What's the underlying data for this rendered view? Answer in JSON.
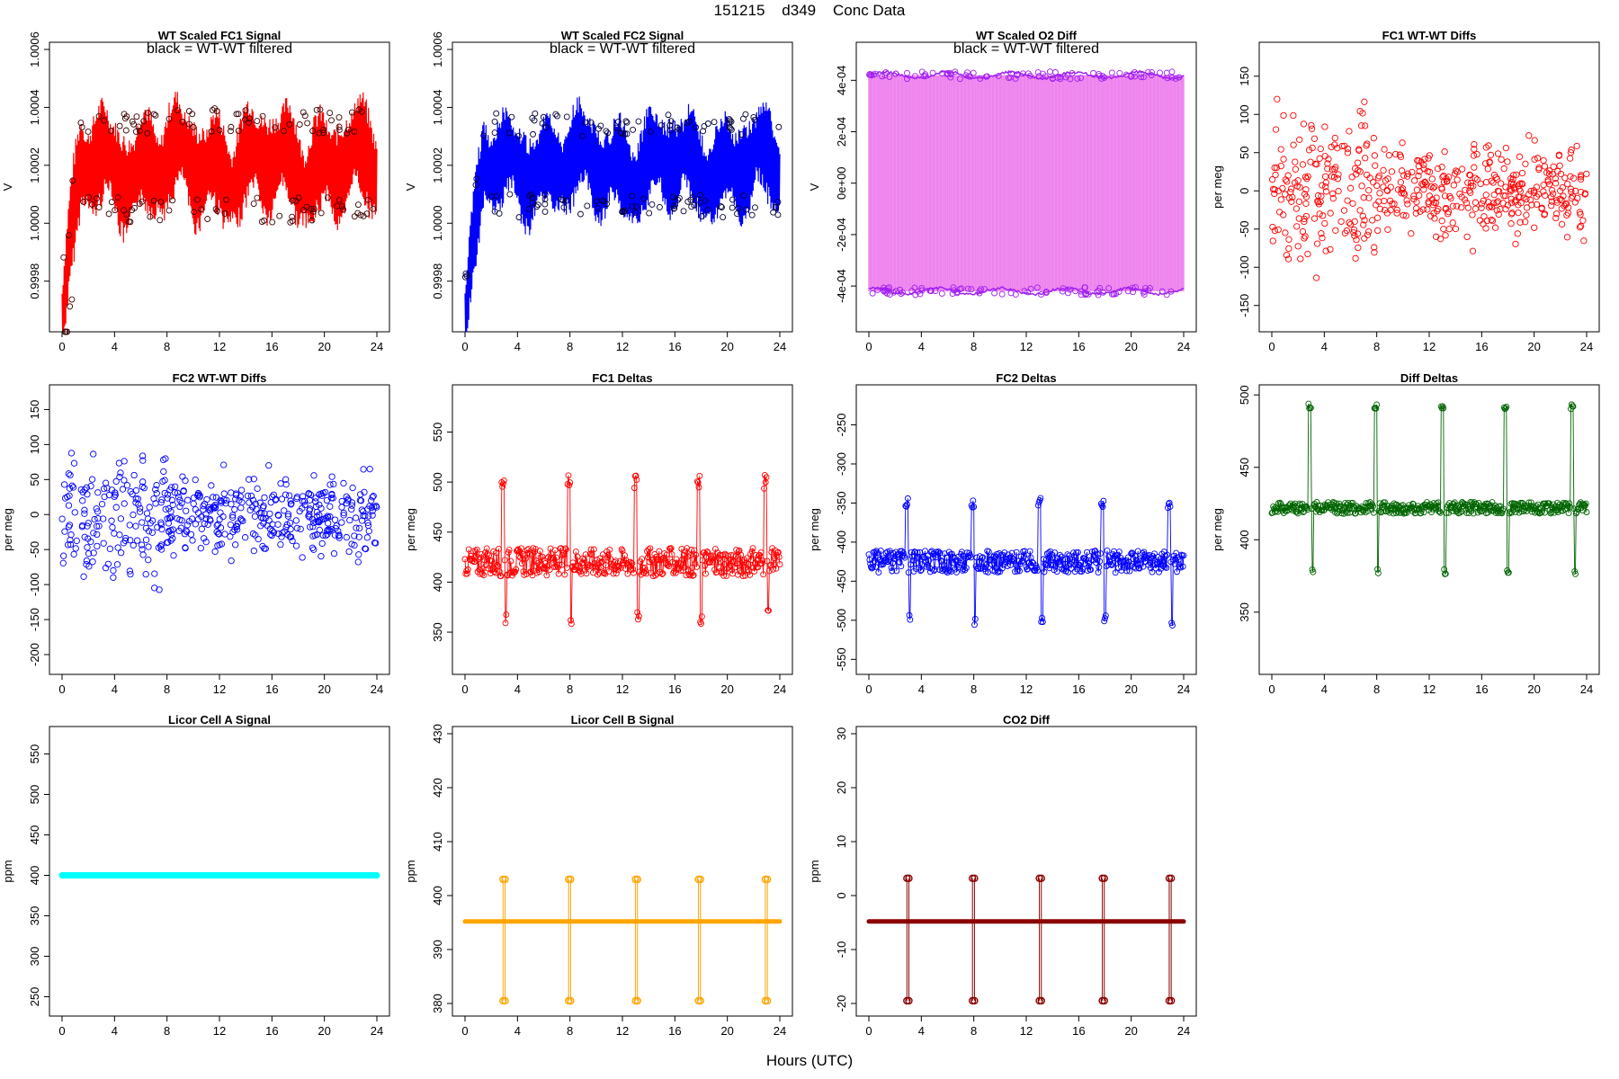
{
  "page": {
    "title": "151215    d349    Conc Data",
    "x_axis_label": "Hours (UTC)"
  },
  "chart_data": [
    {
      "id": "p1",
      "type": "line",
      "title": "WT Scaled FC1 Signal",
      "annotation": "black = WT-WT filtered",
      "ylabel": "V",
      "color": "#ff0000",
      "marker_color": "#3a0000",
      "style": "band",
      "xlim": [
        0,
        24
      ],
      "ylim": [
        0.99965,
        1.0006
      ],
      "yticks": [
        0.9998,
        1.0,
        1.0002,
        1.0004,
        1.0006
      ],
      "yticklabels": [
        "0.9998",
        "1.0000",
        "1.0002",
        "1.0004",
        "1.0006"
      ],
      "xticks": [
        0,
        4,
        8,
        12,
        16,
        20,
        24
      ],
      "xticklabels": [
        "0",
        "4",
        "8",
        "12",
        "16",
        "20",
        "24"
      ],
      "series": {
        "center": 1.0002,
        "amplitude": 0.00022,
        "start": 0.99966,
        "end": 1.0002
      }
    },
    {
      "id": "p2",
      "type": "line",
      "title": "WT Scaled FC2 Signal",
      "annotation": "black = WT-WT filtered",
      "ylabel": "V",
      "color": "#0000ff",
      "marker_color": "#000033",
      "style": "band",
      "xlim": [
        0,
        24
      ],
      "ylim": [
        0.99965,
        1.0006
      ],
      "yticks": [
        0.9998,
        1.0,
        1.0002,
        1.0004,
        1.0006
      ],
      "yticklabels": [
        "0.9998",
        "1.0000",
        "1.0002",
        "1.0004",
        "1.0006"
      ],
      "xticks": [
        0,
        4,
        8,
        12,
        16,
        20,
        24
      ],
      "xticklabels": [
        "0",
        "4",
        "8",
        "12",
        "16",
        "20",
        "24"
      ],
      "series": {
        "center": 1.0002,
        "amplitude": 0.0002,
        "start": 0.99966,
        "end": 1.0002
      }
    },
    {
      "id": "p3",
      "type": "line",
      "title": "WT Scaled O2 Diff",
      "annotation": "black = WT-WT filtered",
      "ylabel": "V",
      "color": "#ee82ee",
      "marker_color": "#a020f0",
      "style": "twolines",
      "xlim": [
        0,
        24
      ],
      "ylim": [
        -0.00055,
        0.00052
      ],
      "yticks": [
        -0.0004,
        -0.0002,
        0.0,
        0.0002,
        0.0004
      ],
      "yticklabels": [
        "-4e-04",
        "-2e-04",
        "0e+00",
        "2e-04",
        "4e-04"
      ],
      "xticks": [
        0,
        4,
        8,
        12,
        16,
        20,
        24
      ],
      "xticklabels": [
        "0",
        "4",
        "8",
        "12",
        "16",
        "20",
        "24"
      ],
      "series": {
        "upper": 0.00042,
        "lower": -0.00042
      }
    },
    {
      "id": "p4",
      "type": "scatter",
      "title": "FC1 WT-WT Diffs",
      "annotation": "",
      "ylabel": "per meg",
      "color": "#ff0000",
      "style": "scatter",
      "xlim": [
        0,
        24
      ],
      "ylim": [
        -175,
        185
      ],
      "yticks": [
        -150,
        -100,
        -50,
        0,
        50,
        100,
        150
      ],
      "yticklabels": [
        "-150",
        "-100",
        "-50",
        "0",
        "50",
        "100",
        "150"
      ],
      "xticks": [
        0,
        4,
        8,
        12,
        16,
        20,
        24
      ],
      "xticklabels": [
        "0",
        "4",
        "8",
        "12",
        "16",
        "20",
        "24"
      ],
      "series": {
        "center": 0,
        "spread": 35,
        "n": 520
      }
    },
    {
      "id": "p5",
      "type": "scatter",
      "title": "FC2 WT-WT Diffs",
      "annotation": "",
      "ylabel": "per meg",
      "color": "#0000ff",
      "style": "scatter",
      "xlim": [
        0,
        24
      ],
      "ylim": [
        -218,
        175
      ],
      "yticks": [
        -200,
        -150,
        -100,
        -50,
        0,
        50,
        100,
        150
      ],
      "yticklabels": [
        "-200",
        "-150",
        "-100",
        "-50",
        "0",
        "50",
        "100",
        "150"
      ],
      "xticks": [
        0,
        4,
        8,
        12,
        16,
        20,
        24
      ],
      "xticklabels": [
        "0",
        "4",
        "8",
        "12",
        "16",
        "20",
        "24"
      ],
      "series": {
        "center": 0,
        "spread": 35,
        "n": 520
      }
    },
    {
      "id": "p6",
      "type": "line",
      "title": "FC1 Deltas",
      "annotation": "",
      "ylabel": "per meg",
      "color": "#ff0000",
      "style": "deltas",
      "xlim": [
        0,
        24
      ],
      "ylim": [
        315,
        590
      ],
      "yticks": [
        350,
        400,
        450,
        500,
        550
      ],
      "yticklabels": [
        "350",
        "400",
        "450",
        "500",
        "550"
      ],
      "xticks": [
        0,
        4,
        8,
        12,
        16,
        20,
        24
      ],
      "xticklabels": [
        "0",
        "4",
        "8",
        "12",
        "16",
        "20",
        "24"
      ],
      "series": {
        "center": 420,
        "spread": 14,
        "spike_up": 500,
        "spike_down": 365,
        "spikes": [
          2.9,
          7.9,
          13.0,
          17.8,
          22.9
        ]
      }
    },
    {
      "id": "p7",
      "type": "line",
      "title": "FC2 Deltas",
      "annotation": "",
      "ylabel": "per meg",
      "color": "#0000ff",
      "style": "deltas",
      "xlim": [
        0,
        24
      ],
      "ylim": [
        -560,
        -208
      ],
      "yticks": [
        -550,
        -500,
        -450,
        -400,
        -350,
        -300,
        -250
      ],
      "yticklabels": [
        "-550",
        "-500",
        "-450",
        "-400",
        "-350",
        "-300",
        "-250"
      ],
      "xticks": [
        0,
        4,
        8,
        12,
        16,
        20,
        24
      ],
      "xticklabels": [
        "0",
        "4",
        "8",
        "12",
        "16",
        "20",
        "24"
      ],
      "series": {
        "center": -425,
        "spread": 14,
        "spike_up": -350,
        "spike_down": -500,
        "spikes": [
          2.9,
          7.9,
          13.0,
          17.8,
          22.9
        ]
      }
    },
    {
      "id": "p8",
      "type": "line",
      "title": "Diff Deltas",
      "annotation": "",
      "ylabel": "per meg",
      "color": "#006400",
      "style": "deltas",
      "xlim": [
        0,
        24
      ],
      "ylim": [
        312,
        502
      ],
      "yticks": [
        350,
        400,
        450,
        500
      ],
      "yticklabels": [
        "350",
        "400",
        "450",
        "500"
      ],
      "xticks": [
        0,
        4,
        8,
        12,
        16,
        20,
        24
      ],
      "xticklabels": [
        "0",
        "4",
        "8",
        "12",
        "16",
        "20",
        "24"
      ],
      "series": {
        "center": 422,
        "spread": 4,
        "spike_up": 492,
        "spike_down": 378,
        "spikes": [
          2.9,
          7.9,
          13.0,
          17.8,
          22.9
        ]
      }
    },
    {
      "id": "p9",
      "type": "line",
      "title": "Licor Cell A Signal",
      "annotation": "",
      "ylabel": "ppm",
      "color": "#00ffff",
      "style": "flat",
      "xlim": [
        0,
        24
      ],
      "ylim": [
        235,
        575
      ],
      "yticks": [
        250,
        300,
        350,
        400,
        450,
        500,
        550
      ],
      "yticklabels": [
        "250",
        "300",
        "350",
        "400",
        "450",
        "500",
        "550"
      ],
      "xticks": [
        0,
        4,
        8,
        12,
        16,
        20,
        24
      ],
      "xticklabels": [
        "0",
        "4",
        "8",
        "12",
        "16",
        "20",
        "24"
      ],
      "series": {
        "value": 400
      }
    },
    {
      "id": "p10",
      "type": "line",
      "title": "Licor Cell B Signal",
      "annotation": "",
      "ylabel": "ppm",
      "color": "#ffa500",
      "style": "licor",
      "xlim": [
        0,
        24
      ],
      "ylim": [
        379,
        430
      ],
      "yticks": [
        380,
        390,
        400,
        410,
        420,
        430
      ],
      "yticklabels": [
        "380",
        "390",
        "400",
        "410",
        "420",
        "430"
      ],
      "xticks": [
        0,
        4,
        8,
        12,
        16,
        20,
        24
      ],
      "xticklabels": [
        "0",
        "4",
        "8",
        "12",
        "16",
        "20",
        "24"
      ],
      "series": {
        "base": 395.2,
        "high": 403,
        "low": 380.5,
        "spikes": [
          2.9,
          7.9,
          13.0,
          17.8,
          22.9
        ]
      }
    },
    {
      "id": "p11",
      "type": "line",
      "title": "CO2 Diff",
      "annotation": "",
      "ylabel": "ppm",
      "color": "#8b0000",
      "style": "licor",
      "xlim": [
        0,
        24
      ],
      "ylim": [
        -21,
        30
      ],
      "yticks": [
        -20,
        -10,
        0,
        10,
        20,
        30
      ],
      "yticklabels": [
        "-20",
        "-10",
        "0",
        "10",
        "20",
        "30"
      ],
      "xticks": [
        0,
        4,
        8,
        12,
        16,
        20,
        24
      ],
      "xticklabels": [
        "0",
        "4",
        "8",
        "12",
        "16",
        "20",
        "24"
      ],
      "series": {
        "base": -4.8,
        "high": 3.2,
        "low": -19.5,
        "spikes": [
          2.9,
          7.9,
          13.0,
          17.8,
          22.9
        ]
      }
    }
  ]
}
